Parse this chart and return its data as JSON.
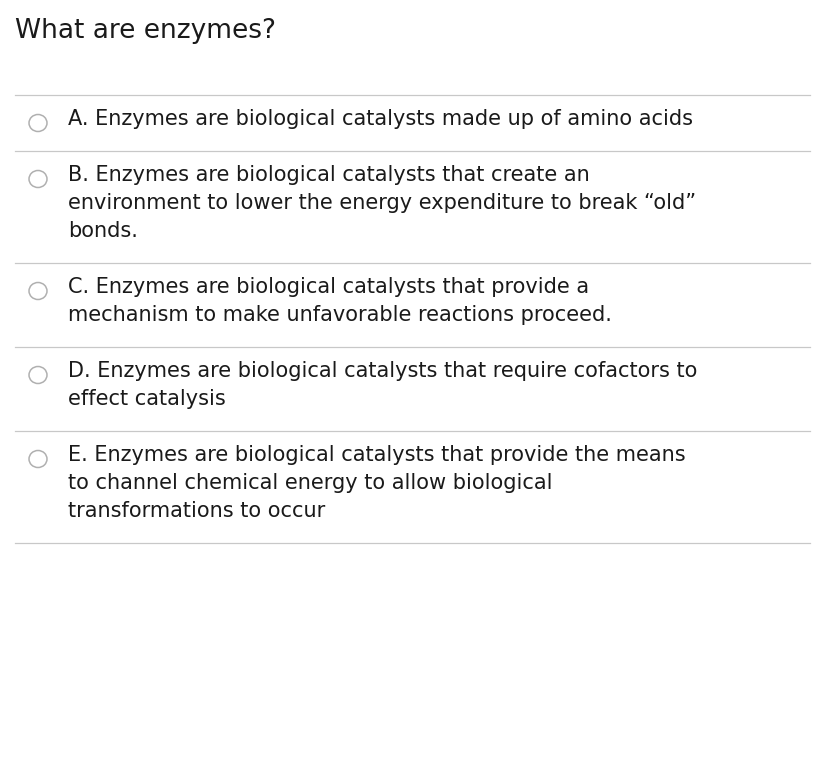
{
  "title": "What are enzymes?",
  "title_fontsize": 19,
  "background_color": "#ffffff",
  "text_color": "#1a1a1a",
  "option_fontsize": 15,
  "divider_color": "#c8c8c8",
  "circle_color": "#b0b0b0",
  "options": [
    {
      "label": "A",
      "lines": [
        "A. Enzymes are biological catalysts made up of amino acids"
      ]
    },
    {
      "label": "B",
      "lines": [
        "B. Enzymes are biological catalysts that create an",
        "environment to lower the energy expenditure to break “old”",
        "bonds."
      ]
    },
    {
      "label": "C",
      "lines": [
        "C. Enzymes are biological catalysts that provide a",
        "mechanism to make unfavorable reactions proceed."
      ]
    },
    {
      "label": "D",
      "lines": [
        "D. Enzymes are biological catalysts that require cofactors to",
        "effect catalysis"
      ]
    },
    {
      "label": "E",
      "lines": [
        "E. Enzymes are biological catalysts that provide the means",
        "to channel chemical energy to allow biological",
        "transformations to occur"
      ]
    }
  ]
}
